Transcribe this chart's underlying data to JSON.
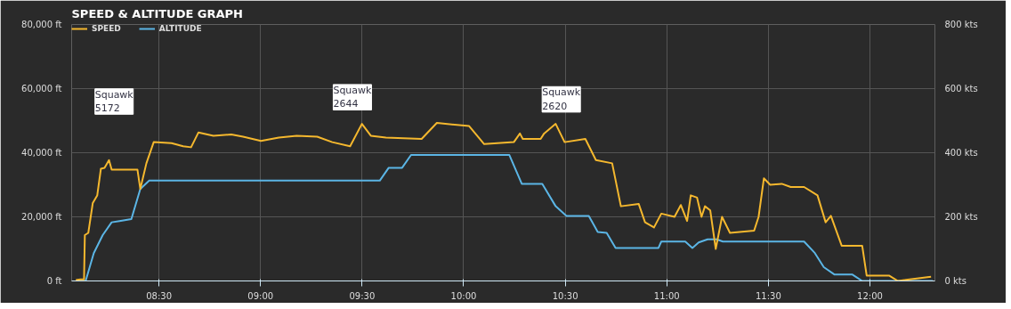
{
  "chart_data": {
    "type": "line",
    "title": "SPEED & ALTITUDE GRAPH",
    "xlim": [
      8.07,
      12.32
    ],
    "xticks": [
      {
        "value": 8.5,
        "label": "08:30"
      },
      {
        "value": 9,
        "label": "09:00"
      },
      {
        "value": 9.5,
        "label": "09:30"
      },
      {
        "value": 10,
        "label": "10:00"
      },
      {
        "value": 10.5,
        "label": "10:30"
      },
      {
        "value": 11,
        "label": "11:00"
      },
      {
        "value": 11.5,
        "label": "11:30"
      },
      {
        "value": 12,
        "label": "12:00"
      }
    ],
    "ylim": [
      0,
      80000
    ],
    "yticks": [
      {
        "value": 0,
        "label": "0 ft"
      },
      {
        "value": 20000,
        "label": "20,000 ft"
      },
      {
        "value": 40000,
        "label": "40,000 ft"
      },
      {
        "value": 60000,
        "label": "60,000 ft"
      },
      {
        "value": 80000,
        "label": "80,000 ft"
      }
    ],
    "y2lim": [
      0,
      800
    ],
    "y2ticks": [
      {
        "value": 0,
        "label": "0 kts"
      },
      {
        "value": 200,
        "label": "200 kts"
      },
      {
        "value": 400,
        "label": "400 kts"
      },
      {
        "value": 600,
        "label": "600 kts"
      },
      {
        "value": 800,
        "label": "800 kts"
      }
    ],
    "grid": true,
    "legend": "top left",
    "annotations": [
      "Squawk\n5172",
      "Squawk\n2644",
      "Squawk\n2620"
    ],
    "series": [
      {
        "name": "SPEED",
        "color": "#f5b82e",
        "axis": "y2",
        "x": [
          8.091,
          8.113,
          8.131,
          8.135,
          8.152,
          8.174,
          8.196,
          8.214,
          8.232,
          8.254,
          8.267,
          8.328,
          8.394,
          8.408,
          8.438,
          8.474,
          8.562,
          8.619,
          8.658,
          8.694,
          8.768,
          8.856,
          8.914,
          9.002,
          9.09,
          9.178,
          9.279,
          9.353,
          9.441,
          9.499,
          9.543,
          9.617,
          9.793,
          9.868,
          10.027,
          10.101,
          10.247,
          10.277,
          10.291,
          10.379,
          10.396,
          10.453,
          10.497,
          10.599,
          10.651,
          10.731,
          10.774,
          10.862,
          10.893,
          10.937,
          10.973,
          11.038,
          11.069,
          11.1,
          11.118,
          11.149,
          11.171,
          11.188,
          11.214,
          11.241,
          11.272,
          11.311,
          11.43,
          11.452,
          11.478,
          11.509,
          11.566,
          11.61,
          11.676,
          11.742,
          11.782,
          11.808,
          11.861,
          11.962,
          11.984,
          12.094,
          12.138,
          12.301
        ],
        "values": [
          3,
          5,
          5,
          143,
          150,
          243,
          267,
          350,
          353,
          377,
          347,
          347,
          347,
          287,
          367,
          433,
          430,
          420,
          417,
          463,
          453,
          457,
          450,
          437,
          447,
          453,
          450,
          433,
          420,
          490,
          453,
          447,
          443,
          493,
          483,
          427,
          433,
          460,
          443,
          443,
          460,
          490,
          433,
          443,
          377,
          367,
          233,
          240,
          183,
          167,
          210,
          200,
          237,
          187,
          267,
          260,
          200,
          233,
          220,
          100,
          200,
          150,
          157,
          200,
          320,
          300,
          303,
          293,
          293,
          267,
          183,
          203,
          110,
          110,
          17,
          17,
          0,
          13
        ]
      },
      {
        "name": "ALTITUDE",
        "color": "#5bb5e5",
        "x": [
          8.091,
          8.139,
          8.179,
          8.223,
          8.267,
          8.306,
          8.364,
          8.408,
          8.452,
          9.587,
          9.631,
          9.697,
          9.741,
          10.225,
          10.286,
          10.387,
          10.453,
          10.506,
          10.616,
          10.66,
          10.704,
          10.748,
          10.959,
          10.973,
          11.091,
          11.126,
          11.157,
          11.201,
          11.245,
          11.276,
          11.676,
          11.729,
          11.773,
          11.826,
          11.914,
          11.962,
          12.31
        ],
        "values": [
          0,
          0,
          8700,
          14300,
          18300,
          18700,
          19300,
          28700,
          31300,
          31300,
          35300,
          35300,
          39300,
          39300,
          30300,
          30300,
          23300,
          20300,
          20300,
          15300,
          15000,
          10300,
          10300,
          12300,
          12300,
          10300,
          12000,
          13000,
          13000,
          12300,
          12300,
          8700,
          4300,
          2000,
          2000,
          0,
          0
        ]
      }
    ]
  }
}
